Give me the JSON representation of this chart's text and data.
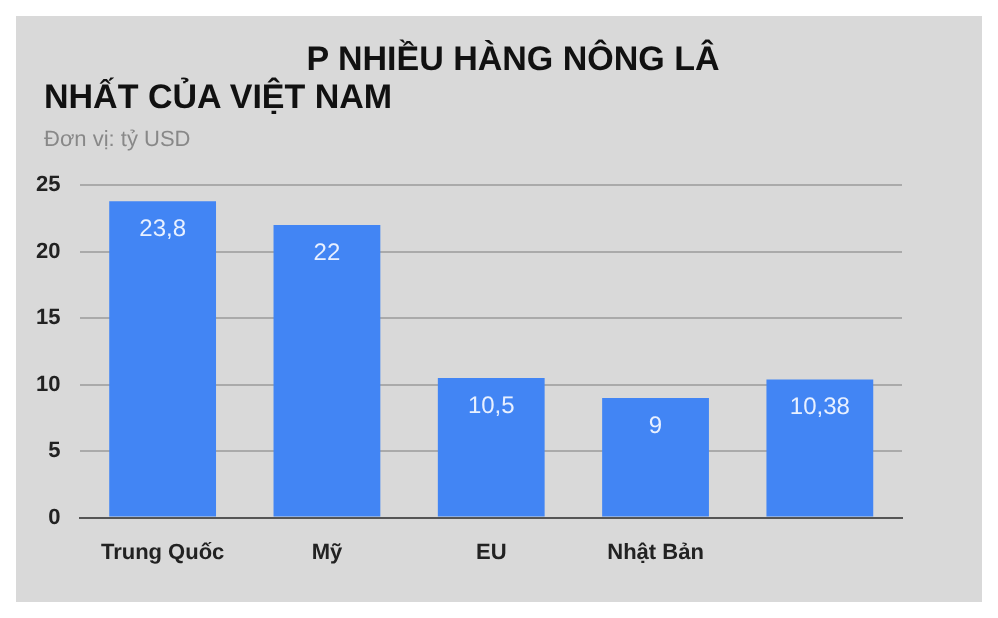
{
  "chart_data": {
    "type": "bar",
    "title": "P NHIỀU HÀNG NÔNG LÂ\nNHẤT CỦA VIỆT NAM",
    "ylabel": "Đơn vị: tỷ USD",
    "categories": [
      "Trung Quốc",
      "Mỹ",
      "EU",
      "Nhật Bản",
      null
    ],
    "values": [
      23.8,
      22,
      10.5,
      9,
      10.38
    ],
    "value_labels": [
      "23,8",
      "22",
      "10,5",
      "9",
      "10,38"
    ],
    "color": "#4285f4",
    "ylim": [
      0,
      25
    ],
    "yticks": [
      0,
      5,
      10,
      15,
      20,
      25
    ],
    "grid": "y",
    "legend": false
  }
}
